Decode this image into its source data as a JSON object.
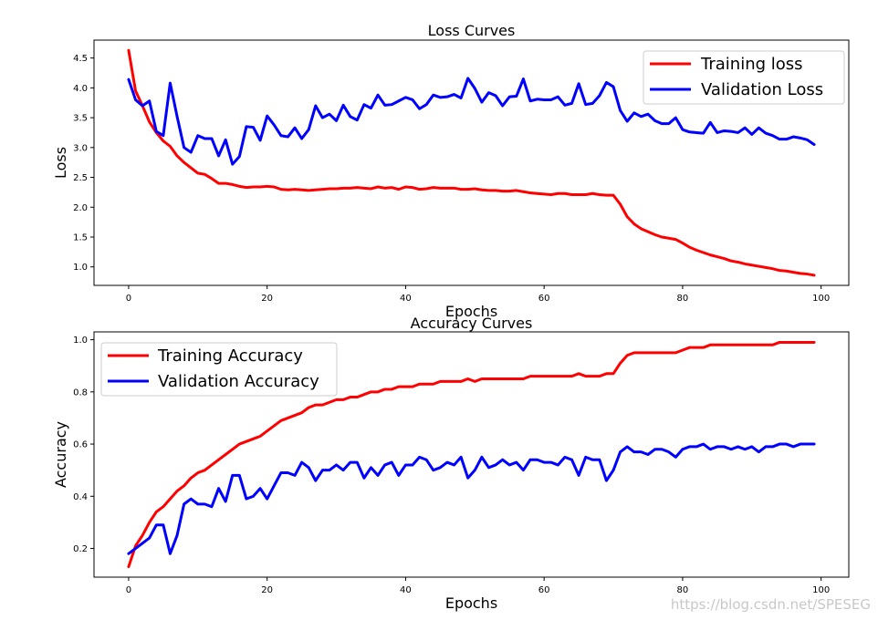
{
  "watermark": "https://blog.csdn.net/SPESEG",
  "chart_data": [
    {
      "type": "line",
      "title": "Loss Curves",
      "xlabel": "Epochs",
      "ylabel": "Loss",
      "xlim": [
        -5,
        104
      ],
      "ylim": [
        0.69,
        4.8
      ],
      "xticks": [
        0,
        20,
        40,
        60,
        80,
        100
      ],
      "yticks": [
        1.0,
        1.5,
        2.0,
        2.5,
        3.0,
        3.5,
        4.0,
        4.5
      ],
      "grid": false,
      "legend": "top-right",
      "x": [
        0,
        1,
        2,
        3,
        4,
        5,
        6,
        7,
        8,
        9,
        10,
        11,
        12,
        13,
        14,
        15,
        16,
        17,
        18,
        19,
        20,
        21,
        22,
        23,
        24,
        25,
        26,
        27,
        28,
        29,
        30,
        31,
        32,
        33,
        34,
        35,
        36,
        37,
        38,
        39,
        40,
        41,
        42,
        43,
        44,
        45,
        46,
        47,
        48,
        49,
        50,
        51,
        52,
        53,
        54,
        55,
        56,
        57,
        58,
        59,
        60,
        61,
        62,
        63,
        64,
        65,
        66,
        67,
        68,
        69,
        70,
        71,
        72,
        73,
        74,
        75,
        76,
        77,
        78,
        79,
        80,
        81,
        82,
        83,
        84,
        85,
        86,
        87,
        88,
        89,
        90,
        91,
        92,
        93,
        94,
        95,
        96,
        97,
        98,
        99
      ],
      "series": [
        {
          "name": "Training loss",
          "color": "#ff0000",
          "values": [
            4.63,
            3.95,
            3.7,
            3.43,
            3.25,
            3.11,
            3.02,
            2.86,
            2.75,
            2.66,
            2.57,
            2.55,
            2.48,
            2.4,
            2.4,
            2.38,
            2.35,
            2.33,
            2.34,
            2.34,
            2.35,
            2.34,
            2.3,
            2.29,
            2.3,
            2.29,
            2.28,
            2.29,
            2.3,
            2.31,
            2.31,
            2.32,
            2.32,
            2.33,
            2.32,
            2.31,
            2.34,
            2.32,
            2.33,
            2.3,
            2.34,
            2.33,
            2.3,
            2.31,
            2.33,
            2.32,
            2.32,
            2.32,
            2.3,
            2.3,
            2.31,
            2.29,
            2.28,
            2.28,
            2.27,
            2.27,
            2.28,
            2.26,
            2.24,
            2.23,
            2.22,
            2.21,
            2.23,
            2.23,
            2.21,
            2.21,
            2.21,
            2.23,
            2.21,
            2.2,
            2.2,
            2.05,
            1.84,
            1.72,
            1.64,
            1.59,
            1.54,
            1.5,
            1.48,
            1.46,
            1.4,
            1.33,
            1.28,
            1.24,
            1.2,
            1.17,
            1.14,
            1.1,
            1.08,
            1.05,
            1.03,
            1.01,
            0.99,
            0.97,
            0.94,
            0.93,
            0.91,
            0.89,
            0.88,
            0.86
          ]
        },
        {
          "name": "Validation Loss",
          "color": "#0000ff",
          "values": [
            4.14,
            3.8,
            3.7,
            3.78,
            3.27,
            3.2,
            4.08,
            3.52,
            3.0,
            2.92,
            3.2,
            3.15,
            3.15,
            2.86,
            3.13,
            2.72,
            2.85,
            3.35,
            3.34,
            3.12,
            3.53,
            3.38,
            3.2,
            3.18,
            3.33,
            3.15,
            3.3,
            3.7,
            3.5,
            3.56,
            3.45,
            3.71,
            3.52,
            3.46,
            3.72,
            3.66,
            3.88,
            3.71,
            3.72,
            3.78,
            3.84,
            3.8,
            3.65,
            3.72,
            3.88,
            3.84,
            3.85,
            3.89,
            3.83,
            4.16,
            3.99,
            3.76,
            3.92,
            3.87,
            3.7,
            3.85,
            3.86,
            4.15,
            3.78,
            3.81,
            3.8,
            3.8,
            3.85,
            3.71,
            3.74,
            4.07,
            3.72,
            3.74,
            3.87,
            4.09,
            4.02,
            3.62,
            3.44,
            3.58,
            3.52,
            3.56,
            3.45,
            3.4,
            3.4,
            3.5,
            3.3,
            3.26,
            3.25,
            3.24,
            3.42,
            3.25,
            3.28,
            3.27,
            3.25,
            3.33,
            3.22,
            3.33,
            3.24,
            3.2,
            3.14,
            3.14,
            3.18,
            3.16,
            3.13,
            3.05
          ]
        }
      ]
    },
    {
      "type": "line",
      "title": "Accuracy Curves",
      "xlabel": "Epochs",
      "ylabel": "Accuracy",
      "xlim": [
        -5,
        104
      ],
      "ylim": [
        0.09,
        1.03
      ],
      "xticks": [
        0,
        20,
        40,
        60,
        80,
        100
      ],
      "yticks": [
        0.2,
        0.4,
        0.6,
        0.8,
        1.0
      ],
      "grid": false,
      "legend": "top-left",
      "x": [
        0,
        1,
        2,
        3,
        4,
        5,
        6,
        7,
        8,
        9,
        10,
        11,
        12,
        13,
        14,
        15,
        16,
        17,
        18,
        19,
        20,
        21,
        22,
        23,
        24,
        25,
        26,
        27,
        28,
        29,
        30,
        31,
        32,
        33,
        34,
        35,
        36,
        37,
        38,
        39,
        40,
        41,
        42,
        43,
        44,
        45,
        46,
        47,
        48,
        49,
        50,
        51,
        52,
        53,
        54,
        55,
        56,
        57,
        58,
        59,
        60,
        61,
        62,
        63,
        64,
        65,
        66,
        67,
        68,
        69,
        70,
        71,
        72,
        73,
        74,
        75,
        76,
        77,
        78,
        79,
        80,
        81,
        82,
        83,
        84,
        85,
        86,
        87,
        88,
        89,
        90,
        91,
        92,
        93,
        94,
        95,
        96,
        97,
        98,
        99
      ],
      "series": [
        {
          "name": "Training Accuracy",
          "color": "#ff0000",
          "values": [
            0.13,
            0.21,
            0.25,
            0.3,
            0.34,
            0.36,
            0.39,
            0.42,
            0.44,
            0.47,
            0.49,
            0.5,
            0.52,
            0.54,
            0.56,
            0.58,
            0.6,
            0.61,
            0.62,
            0.63,
            0.65,
            0.67,
            0.69,
            0.7,
            0.71,
            0.72,
            0.74,
            0.75,
            0.75,
            0.76,
            0.77,
            0.77,
            0.78,
            0.78,
            0.79,
            0.8,
            0.8,
            0.81,
            0.81,
            0.82,
            0.82,
            0.82,
            0.83,
            0.83,
            0.83,
            0.84,
            0.84,
            0.84,
            0.84,
            0.85,
            0.84,
            0.85,
            0.85,
            0.85,
            0.85,
            0.85,
            0.85,
            0.85,
            0.86,
            0.86,
            0.86,
            0.86,
            0.86,
            0.86,
            0.86,
            0.87,
            0.86,
            0.86,
            0.86,
            0.87,
            0.87,
            0.91,
            0.94,
            0.95,
            0.95,
            0.95,
            0.95,
            0.95,
            0.95,
            0.95,
            0.96,
            0.97,
            0.97,
            0.97,
            0.98,
            0.98,
            0.98,
            0.98,
            0.98,
            0.98,
            0.98,
            0.98,
            0.98,
            0.98,
            0.99,
            0.99,
            0.99,
            0.99,
            0.99,
            0.99
          ]
        },
        {
          "name": "Validation Accuracy",
          "color": "#0000ff",
          "values": [
            0.18,
            0.2,
            0.22,
            0.24,
            0.29,
            0.29,
            0.18,
            0.25,
            0.37,
            0.39,
            0.37,
            0.37,
            0.36,
            0.43,
            0.38,
            0.48,
            0.48,
            0.39,
            0.4,
            0.43,
            0.39,
            0.44,
            0.49,
            0.49,
            0.48,
            0.53,
            0.51,
            0.46,
            0.5,
            0.5,
            0.52,
            0.5,
            0.53,
            0.53,
            0.47,
            0.51,
            0.48,
            0.52,
            0.53,
            0.48,
            0.52,
            0.52,
            0.55,
            0.54,
            0.5,
            0.51,
            0.53,
            0.52,
            0.55,
            0.47,
            0.5,
            0.55,
            0.51,
            0.52,
            0.54,
            0.52,
            0.53,
            0.5,
            0.54,
            0.54,
            0.53,
            0.53,
            0.52,
            0.55,
            0.54,
            0.48,
            0.55,
            0.54,
            0.54,
            0.46,
            0.5,
            0.57,
            0.59,
            0.57,
            0.57,
            0.56,
            0.58,
            0.58,
            0.57,
            0.55,
            0.58,
            0.59,
            0.59,
            0.6,
            0.58,
            0.59,
            0.59,
            0.58,
            0.59,
            0.58,
            0.59,
            0.57,
            0.59,
            0.59,
            0.6,
            0.6,
            0.59,
            0.6,
            0.6,
            0.6
          ]
        }
      ]
    }
  ]
}
